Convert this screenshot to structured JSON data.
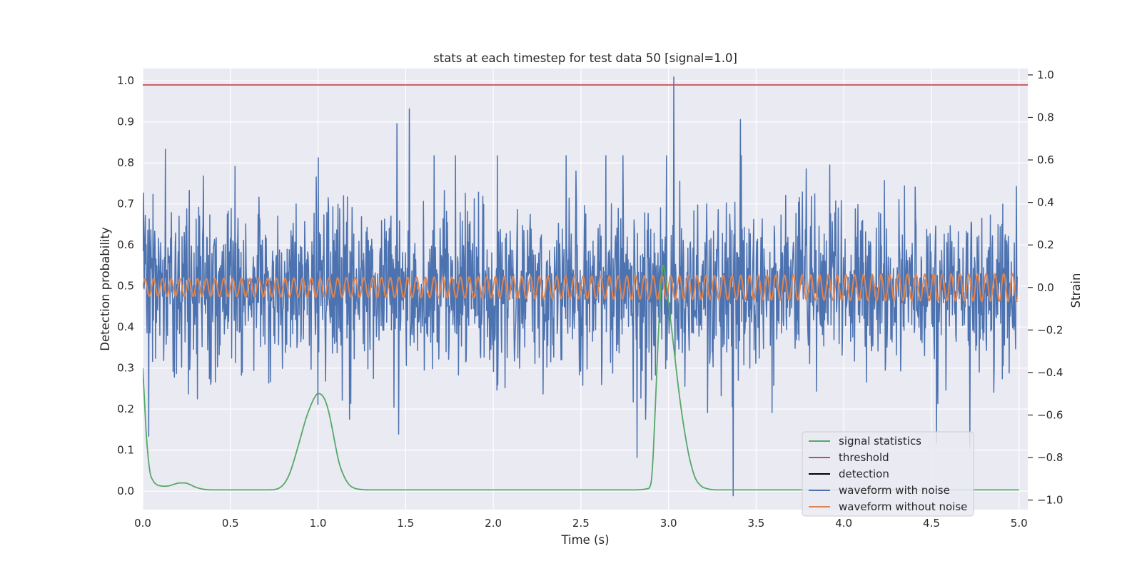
{
  "chart_data": {
    "type": "line",
    "title": "stats at each timestep for test data 50 [signal=1.0]",
    "xlabel": "Time (s)",
    "ylabel_left": "Detection probability",
    "ylabel_right": "Strain",
    "xlim": [
      0.0,
      5.05
    ],
    "ylim_left": [
      -0.045,
      1.03
    ],
    "ylim_right": [
      -1.045,
      1.03
    ],
    "x_ticks": [
      {
        "v": 0.0,
        "label": "0.0"
      },
      {
        "v": 0.5,
        "label": "0.5"
      },
      {
        "v": 1.0,
        "label": "1.0"
      },
      {
        "v": 1.5,
        "label": "1.5"
      },
      {
        "v": 2.0,
        "label": "2.0"
      },
      {
        "v": 2.5,
        "label": "2.5"
      },
      {
        "v": 3.0,
        "label": "3.0"
      },
      {
        "v": 3.5,
        "label": "3.5"
      },
      {
        "v": 4.0,
        "label": "4.0"
      },
      {
        "v": 4.5,
        "label": "4.5"
      },
      {
        "v": 5.0,
        "label": "5.0"
      }
    ],
    "y_ticks_left": [
      {
        "v": 0.0,
        "label": "0.0"
      },
      {
        "v": 0.1,
        "label": "0.1"
      },
      {
        "v": 0.2,
        "label": "0.2"
      },
      {
        "v": 0.3,
        "label": "0.3"
      },
      {
        "v": 0.4,
        "label": "0.4"
      },
      {
        "v": 0.5,
        "label": "0.5"
      },
      {
        "v": 0.6,
        "label": "0.6"
      },
      {
        "v": 0.7,
        "label": "0.7"
      },
      {
        "v": 0.8,
        "label": "0.8"
      },
      {
        "v": 0.9,
        "label": "0.9"
      },
      {
        "v": 1.0,
        "label": "1.0"
      }
    ],
    "y_ticks_right": [
      {
        "v": -1.0,
        "label": "−1.0"
      },
      {
        "v": -0.8,
        "label": "−0.8"
      },
      {
        "v": -0.6,
        "label": "−0.6"
      },
      {
        "v": -0.4,
        "label": "−0.4"
      },
      {
        "v": -0.2,
        "label": "−0.2"
      },
      {
        "v": 0.0,
        "label": "0.0"
      },
      {
        "v": 0.2,
        "label": "0.2"
      },
      {
        "v": 0.4,
        "label": "0.4"
      },
      {
        "v": 0.6,
        "label": "0.6"
      },
      {
        "v": 0.8,
        "label": "0.8"
      },
      {
        "v": 1.0,
        "label": "1.0"
      }
    ],
    "grid": true,
    "legend_position": "lower-right",
    "colors": {
      "background": "#eaeaf2",
      "grid": "#ffffff",
      "signal_statistics": "#55a868",
      "threshold": "#c44e52",
      "detection": "#000000",
      "waveform_with_noise": "#4c72b0",
      "waveform_without_noise": "#dd8452"
    },
    "series": [
      {
        "name": "signal statistics",
        "axis": "left",
        "color": "#55a868",
        "x": [
          0.0,
          0.01,
          0.02,
          0.04,
          0.06,
          0.08,
          0.1,
          0.12,
          0.15,
          0.18,
          0.21,
          0.24,
          0.27,
          0.3,
          0.33,
          0.36,
          0.4,
          0.5,
          0.6,
          0.7,
          0.75,
          0.78,
          0.81,
          0.84,
          0.87,
          0.9,
          0.93,
          0.96,
          0.98,
          1.0,
          1.02,
          1.04,
          1.06,
          1.08,
          1.1,
          1.12,
          1.15,
          1.18,
          1.21,
          1.25,
          1.3,
          1.5,
          2.0,
          2.3,
          2.5,
          2.8,
          2.88,
          2.9,
          2.91,
          2.92,
          2.93,
          2.94,
          2.95,
          2.96,
          2.97,
          2.98,
          3.0,
          3.03,
          3.06,
          3.09,
          3.12,
          3.15,
          3.18,
          3.22,
          3.3,
          3.5,
          3.8,
          4.0,
          4.5,
          5.0
        ],
        "values": [
          0.3,
          0.22,
          0.14,
          0.05,
          0.025,
          0.016,
          0.013,
          0.012,
          0.013,
          0.017,
          0.02,
          0.02,
          0.016,
          0.01,
          0.006,
          0.004,
          0.003,
          0.003,
          0.003,
          0.003,
          0.004,
          0.008,
          0.02,
          0.045,
          0.085,
          0.13,
          0.175,
          0.21,
          0.228,
          0.238,
          0.235,
          0.222,
          0.195,
          0.155,
          0.11,
          0.07,
          0.035,
          0.015,
          0.007,
          0.004,
          0.003,
          0.003,
          0.003,
          0.003,
          0.003,
          0.003,
          0.006,
          0.02,
          0.07,
          0.16,
          0.26,
          0.36,
          0.45,
          0.52,
          0.55,
          0.53,
          0.46,
          0.35,
          0.24,
          0.15,
          0.08,
          0.035,
          0.015,
          0.006,
          0.003,
          0.003,
          0.003,
          0.003,
          0.003,
          0.003
        ]
      },
      {
        "name": "threshold",
        "axis": "left",
        "color": "#c44e52",
        "x": [
          0.0,
          5.05
        ],
        "values": [
          0.99,
          0.99
        ]
      },
      {
        "name": "detection",
        "axis": "left",
        "color": "#000000",
        "x": [],
        "values": []
      },
      {
        "name": "waveform with noise",
        "axis": "right",
        "color": "#4c72b0",
        "x_range": [
          0.0,
          4.99
        ],
        "samples": 2048,
        "amplitude_std": 0.2,
        "peaks": [
          {
            "x": 0.03,
            "values": [
              0.27,
              -0.7
            ]
          },
          {
            "x": 0.13,
            "values": [
              0.65
            ]
          },
          {
            "x": 1.0,
            "values": [
              -0.55
            ]
          },
          {
            "x": 1.45,
            "values": [
              0.77
            ]
          },
          {
            "x": 1.52,
            "values": [
              0.84
            ]
          },
          {
            "x": 1.46,
            "values": [
              -0.69
            ]
          },
          {
            "x": 2.82,
            "values": [
              -0.8
            ]
          },
          {
            "x": 3.03,
            "values": [
              0.99
            ]
          },
          {
            "x": 3.37,
            "values": [
              -0.98
            ]
          },
          {
            "x": 3.41,
            "values": [
              0.79
            ]
          },
          {
            "x": 4.53,
            "values": [
              -0.73
            ]
          },
          {
            "x": 4.72,
            "values": [
              -0.75
            ]
          }
        ]
      },
      {
        "name": "waveform without noise",
        "axis": "right",
        "color": "#dd8452",
        "x_range": [
          0.0,
          4.99
        ],
        "frequency_hz": 20,
        "amplitude_start": 0.04,
        "amplitude_end": 0.065,
        "offset": 0.0
      }
    ]
  }
}
